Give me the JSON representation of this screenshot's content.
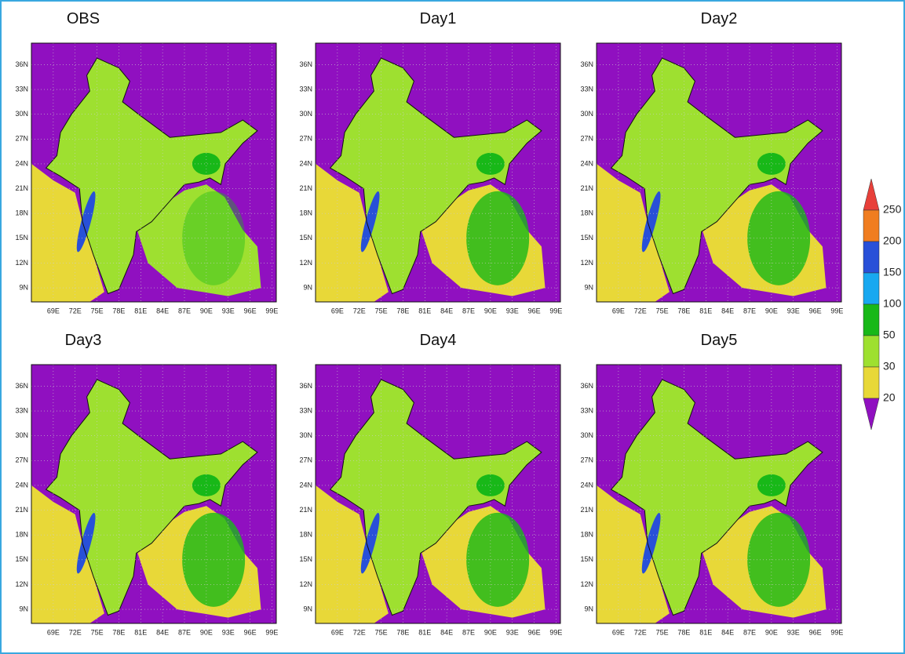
{
  "panels": [
    {
      "title": "OBS"
    },
    {
      "title": "Day1"
    },
    {
      "title": "Day2"
    },
    {
      "title": "Day3"
    },
    {
      "title": "Day4"
    },
    {
      "title": "Day5"
    }
  ],
  "y_ticks": [
    "36N",
    "33N",
    "30N",
    "27N",
    "24N",
    "21N",
    "18N",
    "15N",
    "12N",
    "9N"
  ],
  "x_ticks": [
    "69E",
    "72E",
    "75E",
    "78E",
    "81E",
    "84E",
    "87E",
    "90E",
    "93E",
    "96E",
    "99E"
  ],
  "colorbar": {
    "labels": [
      "250",
      "200",
      "150",
      "100",
      "50",
      "30",
      "20"
    ],
    "colors": [
      "#e8403a",
      "#f07d20",
      "#2850d8",
      "#18a8f0",
      "#18b818",
      "#9ee030",
      "#e8d838",
      "#9010c0"
    ]
  }
}
